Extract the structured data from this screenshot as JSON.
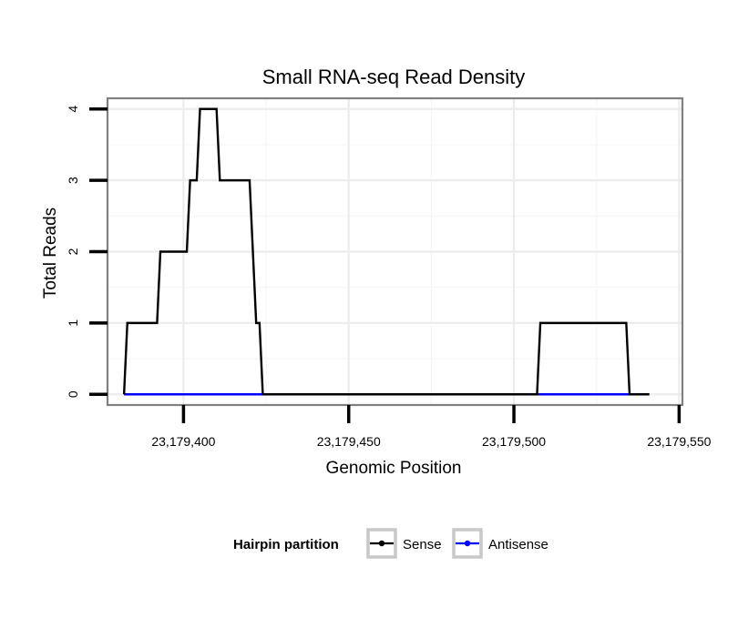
{
  "chart_data": {
    "type": "line",
    "title": "Small RNA-seq Read Density",
    "xlabel": "Genomic Position",
    "ylabel": "Total Reads",
    "xlim": [
      23179377,
      23179551
    ],
    "ylim": [
      -0.15,
      4.15
    ],
    "x_ticks": [
      23179400,
      23179450,
      23179500,
      23179550
    ],
    "x_tick_labels": [
      "23,179,400",
      "23,179,450",
      "23,179,500",
      "23,179,550"
    ],
    "y_ticks": [
      0,
      1,
      2,
      3,
      4
    ],
    "y_tick_labels": [
      "0",
      "1",
      "2",
      "3",
      "4"
    ],
    "grid": true,
    "legend": {
      "title": "Hairpin partition",
      "position": "bottom",
      "entries": [
        "Sense",
        "Antisense"
      ]
    },
    "series": [
      {
        "name": "Sense",
        "color": "#000000",
        "x": [
          23179382,
          23179382,
          23179383,
          23179383,
          23179392,
          23179392,
          23179393,
          23179393,
          23179401,
          23179401,
          23179402,
          23179402,
          23179404,
          23179404,
          23179405,
          23179405,
          23179410,
          23179410,
          23179411,
          23179411,
          23179420,
          23179420,
          23179421,
          23179421,
          23179422,
          23179422,
          23179423,
          23179423,
          23179424,
          23179424,
          23179507,
          23179507,
          23179508,
          23179508,
          23179534,
          23179534,
          23179535,
          23179535,
          23179541
        ],
        "y": [
          0,
          0,
          1,
          1,
          1,
          1,
          2,
          2,
          2,
          2,
          3,
          3,
          3,
          3,
          4,
          4,
          4,
          4,
          3,
          3,
          3,
          3,
          2,
          2,
          1,
          1,
          1,
          1,
          0,
          0,
          0,
          0,
          1,
          1,
          1,
          1,
          0,
          0,
          0
        ]
      },
      {
        "name": "Antisense",
        "color": "#0000ff",
        "x": [
          23179382,
          23179424,
          23179507,
          23179535
        ],
        "y": [
          0,
          0,
          0,
          0
        ]
      }
    ]
  }
}
